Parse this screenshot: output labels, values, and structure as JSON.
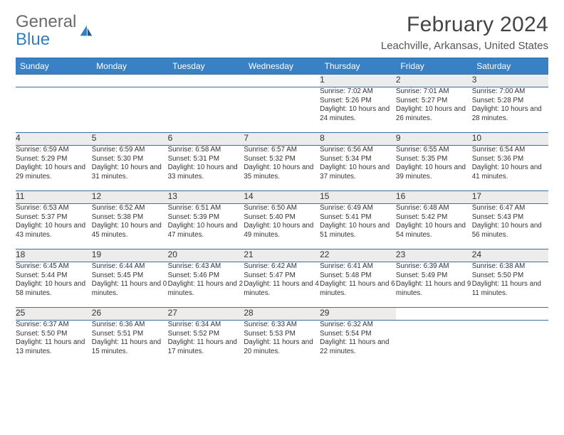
{
  "brand": {
    "word1": "General",
    "word2": "Blue"
  },
  "title": "February 2024",
  "location": "Leachville, Arkansas, United States",
  "colors": {
    "header_bg": "#3a80c4",
    "header_fg": "#ffffff",
    "rule": "#2f6aa8",
    "daynum_bg": "#ececec",
    "text": "#333333",
    "logo_gray": "#6a6a6a",
    "logo_blue": "#2f7fc2"
  },
  "daysOfWeek": [
    "Sunday",
    "Monday",
    "Tuesday",
    "Wednesday",
    "Thursday",
    "Friday",
    "Saturday"
  ],
  "weeks": [
    [
      null,
      null,
      null,
      null,
      {
        "d": "1",
        "sunrise": "7:02 AM",
        "sunset": "5:26 PM",
        "daylight": "10 hours and 24 minutes."
      },
      {
        "d": "2",
        "sunrise": "7:01 AM",
        "sunset": "5:27 PM",
        "daylight": "10 hours and 26 minutes."
      },
      {
        "d": "3",
        "sunrise": "7:00 AM",
        "sunset": "5:28 PM",
        "daylight": "10 hours and 28 minutes."
      }
    ],
    [
      {
        "d": "4",
        "sunrise": "6:59 AM",
        "sunset": "5:29 PM",
        "daylight": "10 hours and 29 minutes."
      },
      {
        "d": "5",
        "sunrise": "6:59 AM",
        "sunset": "5:30 PM",
        "daylight": "10 hours and 31 minutes."
      },
      {
        "d": "6",
        "sunrise": "6:58 AM",
        "sunset": "5:31 PM",
        "daylight": "10 hours and 33 minutes."
      },
      {
        "d": "7",
        "sunrise": "6:57 AM",
        "sunset": "5:32 PM",
        "daylight": "10 hours and 35 minutes."
      },
      {
        "d": "8",
        "sunrise": "6:56 AM",
        "sunset": "5:34 PM",
        "daylight": "10 hours and 37 minutes."
      },
      {
        "d": "9",
        "sunrise": "6:55 AM",
        "sunset": "5:35 PM",
        "daylight": "10 hours and 39 minutes."
      },
      {
        "d": "10",
        "sunrise": "6:54 AM",
        "sunset": "5:36 PM",
        "daylight": "10 hours and 41 minutes."
      }
    ],
    [
      {
        "d": "11",
        "sunrise": "6:53 AM",
        "sunset": "5:37 PM",
        "daylight": "10 hours and 43 minutes."
      },
      {
        "d": "12",
        "sunrise": "6:52 AM",
        "sunset": "5:38 PM",
        "daylight": "10 hours and 45 minutes."
      },
      {
        "d": "13",
        "sunrise": "6:51 AM",
        "sunset": "5:39 PM",
        "daylight": "10 hours and 47 minutes."
      },
      {
        "d": "14",
        "sunrise": "6:50 AM",
        "sunset": "5:40 PM",
        "daylight": "10 hours and 49 minutes."
      },
      {
        "d": "15",
        "sunrise": "6:49 AM",
        "sunset": "5:41 PM",
        "daylight": "10 hours and 51 minutes."
      },
      {
        "d": "16",
        "sunrise": "6:48 AM",
        "sunset": "5:42 PM",
        "daylight": "10 hours and 54 minutes."
      },
      {
        "d": "17",
        "sunrise": "6:47 AM",
        "sunset": "5:43 PM",
        "daylight": "10 hours and 56 minutes."
      }
    ],
    [
      {
        "d": "18",
        "sunrise": "6:45 AM",
        "sunset": "5:44 PM",
        "daylight": "10 hours and 58 minutes."
      },
      {
        "d": "19",
        "sunrise": "6:44 AM",
        "sunset": "5:45 PM",
        "daylight": "11 hours and 0 minutes."
      },
      {
        "d": "20",
        "sunrise": "6:43 AM",
        "sunset": "5:46 PM",
        "daylight": "11 hours and 2 minutes."
      },
      {
        "d": "21",
        "sunrise": "6:42 AM",
        "sunset": "5:47 PM",
        "daylight": "11 hours and 4 minutes."
      },
      {
        "d": "22",
        "sunrise": "6:41 AM",
        "sunset": "5:48 PM",
        "daylight": "11 hours and 6 minutes."
      },
      {
        "d": "23",
        "sunrise": "6:39 AM",
        "sunset": "5:49 PM",
        "daylight": "11 hours and 9 minutes."
      },
      {
        "d": "24",
        "sunrise": "6:38 AM",
        "sunset": "5:50 PM",
        "daylight": "11 hours and 11 minutes."
      }
    ],
    [
      {
        "d": "25",
        "sunrise": "6:37 AM",
        "sunset": "5:50 PM",
        "daylight": "11 hours and 13 minutes."
      },
      {
        "d": "26",
        "sunrise": "6:36 AM",
        "sunset": "5:51 PM",
        "daylight": "11 hours and 15 minutes."
      },
      {
        "d": "27",
        "sunrise": "6:34 AM",
        "sunset": "5:52 PM",
        "daylight": "11 hours and 17 minutes."
      },
      {
        "d": "28",
        "sunrise": "6:33 AM",
        "sunset": "5:53 PM",
        "daylight": "11 hours and 20 minutes."
      },
      {
        "d": "29",
        "sunrise": "6:32 AM",
        "sunset": "5:54 PM",
        "daylight": "11 hours and 22 minutes."
      },
      null,
      null
    ]
  ],
  "labels": {
    "sunrise": "Sunrise: ",
    "sunset": "Sunset: ",
    "daylight": "Daylight: "
  }
}
